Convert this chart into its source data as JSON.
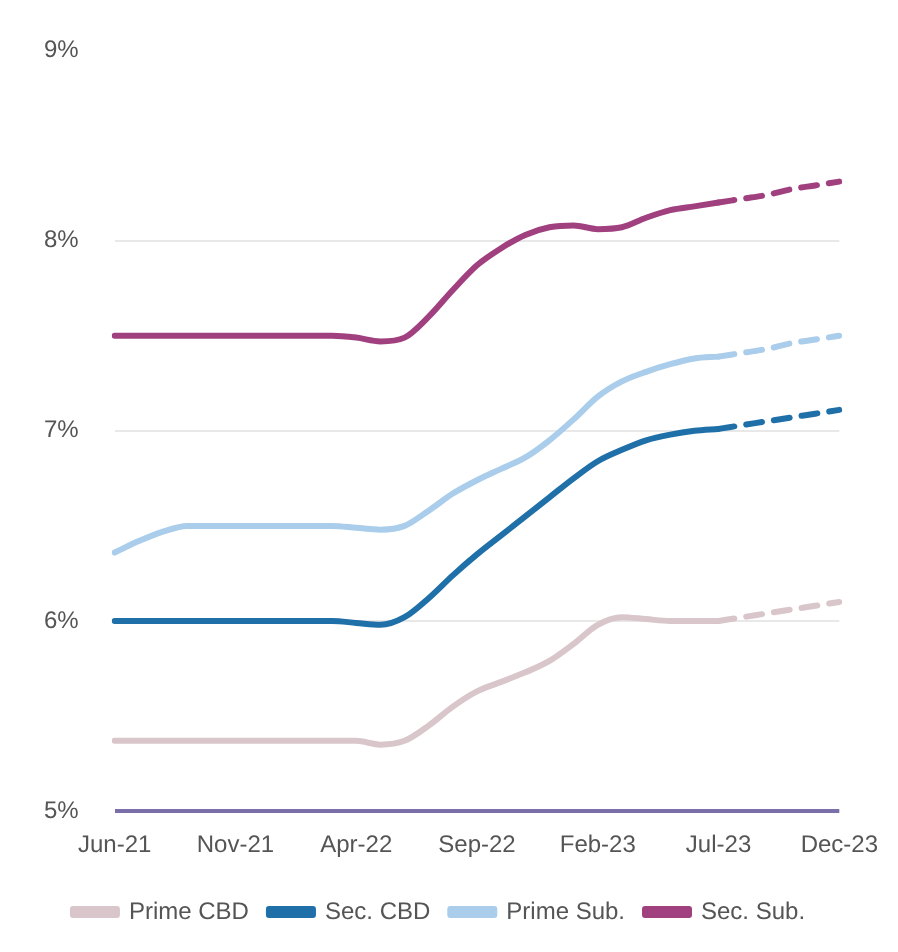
{
  "chart_data": {
    "type": "line",
    "categories": [
      "Jun-21",
      null,
      null,
      null,
      null,
      "Nov-21",
      null,
      null,
      null,
      null,
      "Apr-22",
      null,
      null,
      null,
      null,
      "Sep-22",
      null,
      null,
      null,
      null,
      "Feb-23",
      null,
      null,
      null,
      null,
      "Jul-23",
      null,
      null,
      null,
      null,
      "Dec-23"
    ],
    "ylim": [
      5,
      9
    ],
    "yticks": [
      {
        "value": 5,
        "label": "5%"
      },
      {
        "value": 6,
        "label": "6%"
      },
      {
        "value": 7,
        "label": "7%"
      },
      {
        "value": 8,
        "label": "8%"
      },
      {
        "value": 9,
        "label": "9%"
      }
    ],
    "grid": "y",
    "legend": "bottom",
    "marker": "none",
    "series": [
      {
        "name": "Prime CBD",
        "color": "#d9c6cb",
        "line_style": "solid",
        "values": [
          5.37,
          5.37,
          5.37,
          5.37,
          5.37,
          5.37,
          5.37,
          5.37,
          5.37,
          5.37,
          5.37,
          5.35,
          5.37,
          5.45,
          5.55,
          5.63,
          5.68,
          5.73,
          5.79,
          5.88,
          5.98,
          6.02,
          6.01,
          6.0,
          6.0,
          6.0,
          null,
          null,
          null,
          null,
          null
        ]
      },
      {
        "name": "Sec. CBD",
        "color": "#1f6fa8",
        "line_style": "solid",
        "values": [
          6.0,
          6.0,
          6.0,
          6.0,
          6.0,
          6.0,
          6.0,
          6.0,
          6.0,
          6.0,
          5.99,
          5.98,
          6.02,
          6.12,
          6.24,
          6.35,
          6.45,
          6.55,
          6.65,
          6.75,
          6.84,
          6.9,
          6.95,
          6.98,
          7.0,
          7.01,
          null,
          null,
          null,
          null,
          null
        ]
      },
      {
        "name": "Prime Sub.",
        "color": "#a9cdea",
        "line_style": "solid",
        "values": [
          6.36,
          6.42,
          6.47,
          6.5,
          6.5,
          6.5,
          6.5,
          6.5,
          6.5,
          6.5,
          6.49,
          6.48,
          6.5,
          6.58,
          6.67,
          6.74,
          6.8,
          6.86,
          6.95,
          7.06,
          7.18,
          7.26,
          7.31,
          7.35,
          7.38,
          7.39,
          null,
          null,
          null,
          null,
          null
        ]
      },
      {
        "name": "Sec. Sub.",
        "color": "#a0407f",
        "line_style": "solid",
        "values": [
          7.5,
          7.5,
          7.5,
          7.5,
          7.5,
          7.5,
          7.5,
          7.5,
          7.5,
          7.5,
          7.49,
          7.47,
          7.49,
          7.6,
          7.74,
          7.87,
          7.96,
          8.03,
          8.07,
          8.08,
          8.06,
          8.07,
          8.12,
          8.16,
          8.18,
          8.2,
          null,
          null,
          null,
          null,
          null
        ]
      },
      {
        "color": "#d9c6cb",
        "line_style": "dashed",
        "values": [
          null,
          null,
          null,
          null,
          null,
          null,
          null,
          null,
          null,
          null,
          null,
          null,
          null,
          null,
          null,
          null,
          null,
          null,
          null,
          null,
          null,
          null,
          null,
          null,
          null,
          6.0,
          6.02,
          6.04,
          6.06,
          6.08,
          6.1
        ]
      },
      {
        "color": "#1f6fa8",
        "line_style": "dashed",
        "values": [
          null,
          null,
          null,
          null,
          null,
          null,
          null,
          null,
          null,
          null,
          null,
          null,
          null,
          null,
          null,
          null,
          null,
          null,
          null,
          null,
          null,
          null,
          null,
          null,
          null,
          7.01,
          7.03,
          7.05,
          7.07,
          7.09,
          7.11
        ]
      },
      {
        "color": "#a9cdea",
        "line_style": "dashed",
        "values": [
          null,
          null,
          null,
          null,
          null,
          null,
          null,
          null,
          null,
          null,
          null,
          null,
          null,
          null,
          null,
          null,
          null,
          null,
          null,
          null,
          null,
          null,
          null,
          null,
          null,
          7.39,
          7.41,
          7.43,
          7.46,
          7.48,
          7.5
        ]
      },
      {
        "color": "#a0407f",
        "line_style": "dashed",
        "values": [
          null,
          null,
          null,
          null,
          null,
          null,
          null,
          null,
          null,
          null,
          null,
          null,
          null,
          null,
          null,
          null,
          null,
          null,
          null,
          null,
          null,
          null,
          null,
          null,
          null,
          8.2,
          8.22,
          8.24,
          8.27,
          8.29,
          8.31
        ]
      }
    ]
  }
}
